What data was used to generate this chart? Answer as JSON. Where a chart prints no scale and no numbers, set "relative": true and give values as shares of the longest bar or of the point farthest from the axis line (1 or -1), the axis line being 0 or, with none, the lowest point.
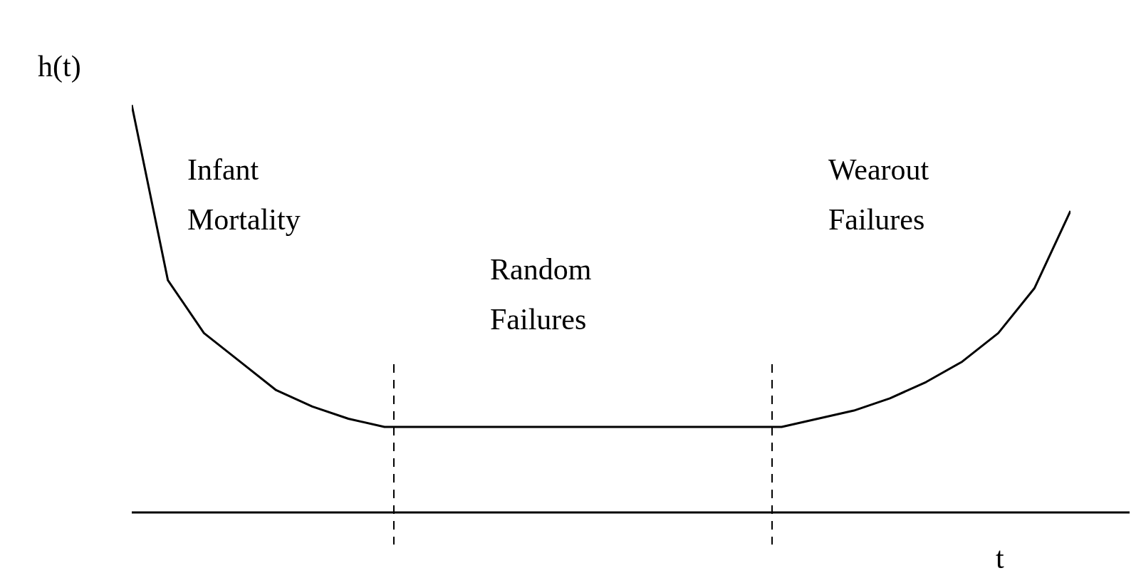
{
  "chart_data": {
    "type": "line",
    "relative": true,
    "xlabel": "t",
    "ylabel": "h(t)",
    "marker": "none",
    "line_style": "solid",
    "categories": [
      null,
      null,
      null,
      null,
      null,
      null,
      null,
      null,
      null,
      null,
      null,
      null,
      null,
      null,
      null,
      null,
      null,
      null,
      null,
      null,
      null,
      null,
      null,
      null,
      null,
      null,
      null
    ],
    "series": [
      {
        "color": "#000000",
        "values": [
          1,
          0.57,
          0.44,
          0.37,
          0.3,
          0.26,
          0.23,
          0.21,
          0.21,
          0.21,
          0.21,
          0.21,
          0.21,
          0.21,
          0.21,
          0.21,
          0.21,
          0.21,
          0.21,
          0.23,
          0.25,
          0.28,
          0.32,
          0.37,
          0.44,
          0.55,
          0.74
        ]
      }
    ],
    "annotations": [
      "Infant\nMortality",
      "Random\nFailures",
      "Wearout\nFailures"
    ]
  }
}
